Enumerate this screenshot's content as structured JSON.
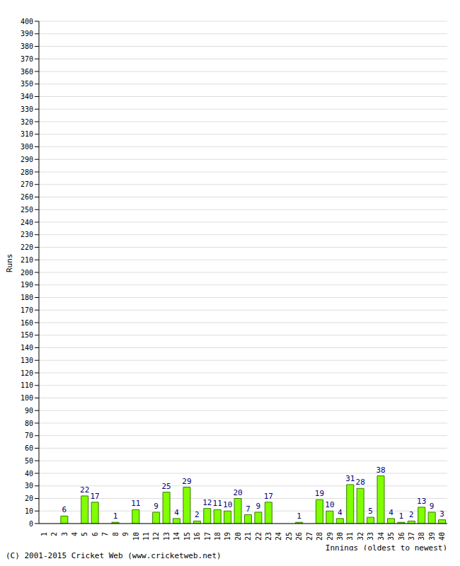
{
  "chart_data": {
    "type": "bar",
    "categories": [
      "1",
      "2",
      "3",
      "4",
      "5",
      "6",
      "7",
      "8",
      "9",
      "10",
      "11",
      "12",
      "13",
      "14",
      "15",
      "16",
      "17",
      "18",
      "19",
      "20",
      "21",
      "22",
      "23",
      "24",
      "25",
      "26",
      "27",
      "28",
      "29",
      "30",
      "31",
      "32",
      "33",
      "34",
      "35",
      "36",
      "37",
      "38",
      "39",
      "40"
    ],
    "values": [
      0,
      0,
      6,
      0,
      22,
      17,
      0,
      1,
      0,
      11,
      0,
      9,
      25,
      4,
      29,
      2,
      12,
      11,
      10,
      20,
      7,
      9,
      17,
      0,
      0,
      1,
      0,
      19,
      10,
      4,
      31,
      28,
      5,
      38,
      4,
      1,
      2,
      13,
      9,
      3
    ],
    "x_label": "Innings (oldest to newest)",
    "y_label": "Runs",
    "annotations": [
      "(C) 2001-2015 Cricket Web (www.cricketweb.net)"
    ],
    "color": "#80ff00",
    "ylim": [
      0,
      400
    ],
    "yticks": [
      0,
      10,
      20,
      30,
      40,
      50,
      60,
      70,
      80,
      90,
      100,
      110,
      120,
      130,
      140,
      150,
      160,
      170,
      180,
      190,
      200,
      210,
      220,
      230,
      240,
      250,
      260,
      270,
      280,
      290,
      300,
      310,
      320,
      330,
      340,
      350,
      360,
      370,
      380,
      390,
      400
    ],
    "grid": true,
    "data_labels": true
  }
}
